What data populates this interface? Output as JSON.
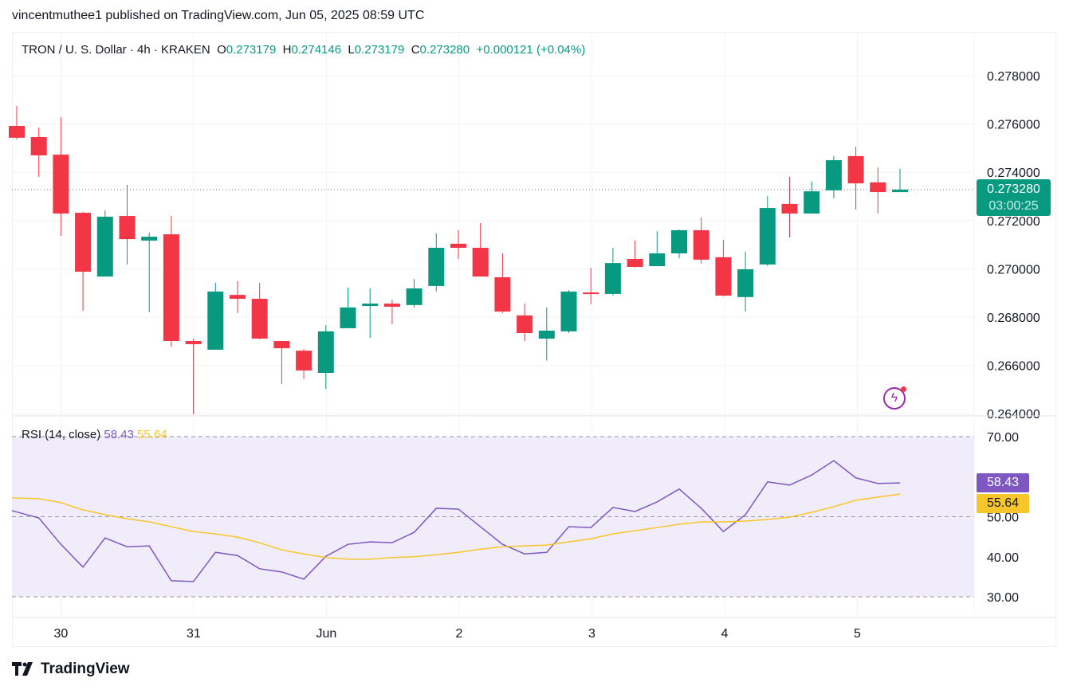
{
  "header": {
    "published": "vincentmuthee1 published on TradingView.com, Jun 05, 2025 08:59 UTC"
  },
  "legend": {
    "symbol": "TRON / U. S. Dollar · 4h · KRAKEN",
    "o_label": "O",
    "o": "0.273179",
    "h_label": "H",
    "h": "0.274146",
    "l_label": "L",
    "l": "0.273179",
    "c_label": "C",
    "c": "0.273280",
    "change": "+0.000121 (+0.04%)"
  },
  "price_label": {
    "price": "0.273280",
    "countdown": "03:00:25"
  },
  "rsi_legend": {
    "name": "RSI (14, close)",
    "rsi": "58.43",
    "ma": "55.64"
  },
  "footer": {
    "brand": "TradingView"
  },
  "colors": {
    "up": "#089981",
    "down": "#f23645",
    "rsi": "#7e57c2",
    "ma": "#f7c62a",
    "band": "#f0ecf9"
  },
  "chart_data": [
    {
      "type": "candlestick",
      "title": "TRON / U. S. Dollar · 4h · KRAKEN",
      "ylim": [
        0.2638,
        0.2795
      ],
      "yticks": [
        "0.278000",
        "0.276000",
        "0.274000",
        "0.272000",
        "0.270000",
        "0.268000",
        "0.266000",
        "0.264000"
      ],
      "ytick_values": [
        0.278,
        0.276,
        0.274,
        0.272,
        0.27,
        0.268,
        0.266,
        0.264
      ],
      "xticks": [
        {
          "label": "30",
          "index": 2
        },
        {
          "label": "31",
          "index": 8
        },
        {
          "label": "Jun",
          "index": 14
        },
        {
          "label": "2",
          "index": 20
        },
        {
          "label": "3",
          "index": 26
        },
        {
          "label": "4",
          "index": 32
        },
        {
          "label": "5",
          "index": 38
        }
      ],
      "ohlc": [
        [
          0.27592,
          0.27675,
          0.27536,
          0.27543
        ],
        [
          0.27546,
          0.27585,
          0.27381,
          0.2747
        ],
        [
          0.27473,
          0.27628,
          0.27137,
          0.27229
        ],
        [
          0.27232,
          0.27236,
          0.26826,
          0.26988
        ],
        [
          0.26968,
          0.27242,
          0.26968,
          0.27216
        ],
        [
          0.27219,
          0.27348,
          0.27018,
          0.27123
        ],
        [
          0.27117,
          0.2715,
          0.2682,
          0.27133
        ],
        [
          0.27143,
          0.27219,
          0.26678,
          0.26701
        ],
        [
          0.26701,
          0.26711,
          0.26397,
          0.26688
        ],
        [
          0.26665,
          0.26942,
          0.26665,
          0.26906
        ],
        [
          0.26892,
          0.26949,
          0.26817,
          0.26876
        ],
        [
          0.26876,
          0.26942,
          0.26708,
          0.26711
        ],
        [
          0.26701,
          0.26701,
          0.26523,
          0.26671
        ],
        [
          0.26661,
          0.26668,
          0.26543,
          0.26579
        ],
        [
          0.26569,
          0.26767,
          0.26503,
          0.26741
        ],
        [
          0.26754,
          0.26922,
          0.26754,
          0.2684
        ],
        [
          0.26846,
          0.26919,
          0.26714,
          0.26856
        ],
        [
          0.26856,
          0.26873,
          0.2677,
          0.26843
        ],
        [
          0.2685,
          0.26958,
          0.2684,
          0.26919
        ],
        [
          0.26929,
          0.27147,
          0.26906,
          0.27087
        ],
        [
          0.27104,
          0.2716,
          0.27041,
          0.27087
        ],
        [
          0.27087,
          0.2719,
          0.26968,
          0.26968
        ],
        [
          0.26965,
          0.27064,
          0.26817,
          0.26823
        ],
        [
          0.26807,
          0.26856,
          0.26701,
          0.26734
        ],
        [
          0.26711,
          0.2684,
          0.2662,
          0.26744
        ],
        [
          0.26741,
          0.26912,
          0.26734,
          0.26906
        ],
        [
          0.26902,
          0.27005,
          0.26853,
          0.26896
        ],
        [
          0.26896,
          0.27087,
          0.2689,
          0.27024
        ],
        [
          0.27041,
          0.27117,
          0.27005,
          0.27008
        ],
        [
          0.27011,
          0.27156,
          0.27011,
          0.27064
        ],
        [
          0.27064,
          0.27163,
          0.27044,
          0.2716
        ],
        [
          0.2716,
          0.27213,
          0.27021,
          0.27038
        ],
        [
          0.27048,
          0.2712,
          0.26886,
          0.26889
        ],
        [
          0.26883,
          0.27071,
          0.26823,
          0.26998
        ],
        [
          0.27018,
          0.27302,
          0.27012,
          0.27252
        ],
        [
          0.27269,
          0.27381,
          0.2713,
          0.27229
        ],
        [
          0.27229,
          0.27362,
          0.27229,
          0.27321
        ],
        [
          0.27325,
          0.27467,
          0.27292,
          0.2745
        ],
        [
          0.27467,
          0.27506,
          0.27246,
          0.27354
        ],
        [
          0.27358,
          0.2742,
          0.27229,
          0.27318
        ],
        [
          0.273179,
          0.274146,
          0.273179,
          0.27328
        ]
      ],
      "last_price": 0.27328
    },
    {
      "type": "line",
      "title": "RSI (14, close)",
      "ylim": [
        25,
        75
      ],
      "yticks": [
        "70.00",
        "60.00",
        "50.00",
        "40.00",
        "30.00"
      ],
      "ytick_values": [
        70,
        60,
        50,
        40,
        30
      ],
      "band": [
        30,
        70
      ],
      "series": [
        {
          "name": "RSI",
          "values": [
            51.5,
            49.7,
            43.1,
            37.4,
            44.7,
            42.5,
            42.7,
            34.0,
            33.8,
            41.1,
            40.3,
            37.0,
            36.2,
            34.4,
            40.1,
            43.1,
            43.7,
            43.5,
            46.1,
            52.1,
            51.9,
            47.5,
            43.1,
            40.7,
            41.1,
            47.5,
            47.3,
            52.3,
            51.3,
            53.7,
            56.9,
            52.1,
            46.3,
            50.5,
            58.7,
            57.9,
            60.4,
            64.0,
            59.7,
            58.3,
            58.43
          ]
        },
        {
          "name": "RSI-based MA",
          "values": [
            54.7,
            54.5,
            53.5,
            51.7,
            50.5,
            49.5,
            48.7,
            47.5,
            46.3,
            45.7,
            44.9,
            43.5,
            41.7,
            40.7,
            39.8,
            39.4,
            39.4,
            39.8,
            40.0,
            40.5,
            41.1,
            41.9,
            42.5,
            42.7,
            42.9,
            43.7,
            44.5,
            45.7,
            46.5,
            47.3,
            48.1,
            48.7,
            48.7,
            48.9,
            49.3,
            49.9,
            51.1,
            52.5,
            54.1,
            54.9,
            55.64
          ]
        }
      ]
    }
  ]
}
